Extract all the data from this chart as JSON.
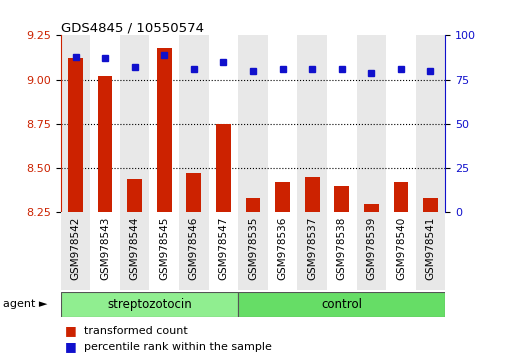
{
  "title": "GDS4845 / 10550574",
  "samples": [
    "GSM978542",
    "GSM978543",
    "GSM978544",
    "GSM978545",
    "GSM978546",
    "GSM978547",
    "GSM978535",
    "GSM978536",
    "GSM978537",
    "GSM978538",
    "GSM978539",
    "GSM978540",
    "GSM978541"
  ],
  "bar_values": [
    9.12,
    9.02,
    8.44,
    9.18,
    8.47,
    8.75,
    8.33,
    8.42,
    8.45,
    8.4,
    8.3,
    8.42,
    8.33
  ],
  "percentile_values": [
    88,
    87,
    82,
    89,
    81,
    85,
    80,
    81,
    81,
    81,
    79,
    81,
    80
  ],
  "ylim_left": [
    8.25,
    9.25
  ],
  "ylim_right": [
    0,
    100
  ],
  "yticks_left": [
    8.25,
    8.5,
    8.75,
    9.0,
    9.25
  ],
  "yticks_right": [
    0,
    25,
    50,
    75,
    100
  ],
  "bar_color": "#CC2200",
  "dot_color": "#1010CC",
  "bg_color": "#FFFFFF",
  "col_bg_even": "#E8E8E8",
  "col_bg_odd": "#FFFFFF",
  "strep_count": 6,
  "ctrl_count": 7,
  "group_strep_color": "#90EE90",
  "group_ctrl_color": "#66DD66",
  "group_label_strep": "streptozotocin",
  "group_label_ctrl": "control",
  "agent_label": "agent",
  "legend_bar_label": "transformed count",
  "legend_dot_label": "percentile rank within the sample",
  "bar_bottom": 8.25,
  "bar_width": 0.5
}
